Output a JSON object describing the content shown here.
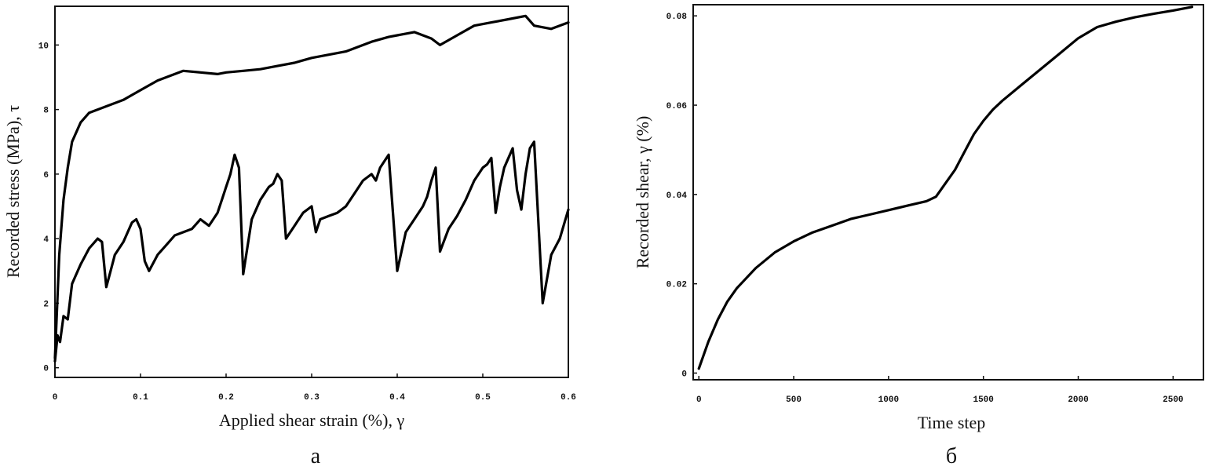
{
  "chart_data": [
    {
      "type": "line",
      "panel_label": "a",
      "xlabel": "Applied shear strain (%), γ",
      "ylabel": "Recorded stress (MPa), τ",
      "xlim": [
        0,
        0.6
      ],
      "ylim": [
        -0.3,
        11.2
      ],
      "x_ticks": [
        0,
        0.1,
        0.2,
        0.3,
        0.4,
        0.5,
        0.6
      ],
      "x_tick_labels": [
        "0",
        "0.1",
        "0.2",
        "0.3",
        "0.4",
        "0.5",
        "0.6"
      ],
      "y_ticks": [
        0,
        2,
        4,
        6,
        8,
        10
      ],
      "y_tick_labels": [
        "0",
        "2",
        "4",
        "6",
        "8",
        "10"
      ],
      "grid": false,
      "series": [
        {
          "x": [
            0,
            0.005,
            0.01,
            0.015,
            0.02,
            0.03,
            0.04,
            0.05,
            0.06,
            0.08,
            0.1,
            0.12,
            0.14,
            0.15,
            0.17,
            0.19,
            0.2,
            0.22,
            0.24,
            0.26,
            0.28,
            0.3,
            0.32,
            0.34,
            0.36,
            0.37,
            0.39,
            0.4,
            0.42,
            0.44,
            0.45,
            0.47,
            0.49,
            0.51,
            0.53,
            0.55,
            0.56,
            0.58,
            0.6
          ],
          "y": [
            0.3,
            3.5,
            5.2,
            6.2,
            7.0,
            7.6,
            7.9,
            8.0,
            8.1,
            8.3,
            8.6,
            8.9,
            9.1,
            9.2,
            9.15,
            9.1,
            9.15,
            9.2,
            9.25,
            9.35,
            9.45,
            9.6,
            9.7,
            9.8,
            10.0,
            10.1,
            10.25,
            10.3,
            10.4,
            10.2,
            10.0,
            10.3,
            10.6,
            10.7,
            10.8,
            10.9,
            10.6,
            10.5,
            10.7
          ]
        },
        {
          "x": [
            0,
            0.003,
            0.006,
            0.01,
            0.015,
            0.02,
            0.03,
            0.04,
            0.05,
            0.055,
            0.06,
            0.065,
            0.07,
            0.08,
            0.09,
            0.095,
            0.1,
            0.105,
            0.11,
            0.12,
            0.13,
            0.14,
            0.15,
            0.16,
            0.17,
            0.18,
            0.19,
            0.195,
            0.2,
            0.205,
            0.21,
            0.215,
            0.22,
            0.23,
            0.24,
            0.25,
            0.255,
            0.26,
            0.265,
            0.27,
            0.28,
            0.29,
            0.3,
            0.305,
            0.31,
            0.32,
            0.33,
            0.34,
            0.35,
            0.36,
            0.37,
            0.375,
            0.38,
            0.385,
            0.39,
            0.4,
            0.41,
            0.42,
            0.43,
            0.435,
            0.44,
            0.445,
            0.45,
            0.46,
            0.47,
            0.48,
            0.49,
            0.5,
            0.505,
            0.51,
            0.515,
            0.52,
            0.525,
            0.53,
            0.535,
            0.54,
            0.545,
            0.55,
            0.555,
            0.56,
            0.57,
            0.58,
            0.59,
            0.6
          ],
          "y": [
            0.2,
            1.0,
            0.8,
            1.6,
            1.5,
            2.6,
            3.2,
            3.7,
            4.0,
            3.9,
            2.5,
            3.0,
            3.5,
            3.9,
            4.5,
            4.6,
            4.3,
            3.3,
            3.0,
            3.5,
            3.8,
            4.1,
            4.2,
            4.3,
            4.6,
            4.4,
            4.8,
            5.2,
            5.6,
            6.0,
            6.6,
            6.2,
            2.9,
            4.6,
            5.2,
            5.6,
            5.7,
            6.0,
            5.8,
            4.0,
            4.4,
            4.8,
            5.0,
            4.2,
            4.6,
            4.7,
            4.8,
            5.0,
            5.4,
            5.8,
            6.0,
            5.8,
            6.2,
            6.4,
            6.6,
            3.0,
            4.2,
            4.6,
            5.0,
            5.3,
            5.8,
            6.2,
            3.6,
            4.3,
            4.7,
            5.2,
            5.8,
            6.2,
            6.3,
            6.5,
            4.8,
            5.6,
            6.2,
            6.5,
            6.8,
            5.5,
            4.9,
            6.0,
            6.8,
            7.0,
            2.0,
            3.5,
            4.0,
            4.9
          ]
        }
      ]
    },
    {
      "type": "line",
      "panel_label": "б",
      "xlabel": "Time step",
      "ylabel": "Recorded shear, γ (%)",
      "xlim": [
        -30,
        2660
      ],
      "ylim": [
        -0.0015,
        0.0825
      ],
      "x_ticks": [
        0,
        500,
        1000,
        1500,
        2000,
        2500
      ],
      "x_tick_labels": [
        "0",
        "500",
        "1000",
        "1500",
        "2000",
        "2500"
      ],
      "y_ticks": [
        0,
        0.02,
        0.04,
        0.06,
        0.08
      ],
      "y_tick_labels": [
        "0",
        "0.02",
        "0.04",
        "0.06",
        "0.08"
      ],
      "grid": false,
      "series": [
        {
          "x": [
            0,
            50,
            100,
            150,
            200,
            300,
            400,
            500,
            600,
            700,
            800,
            900,
            1000,
            1100,
            1200,
            1250,
            1300,
            1350,
            1400,
            1450,
            1500,
            1550,
            1600,
            1700,
            1800,
            1900,
            2000,
            2100,
            2200,
            2300,
            2400,
            2500,
            2600
          ],
          "y": [
            0.001,
            0.007,
            0.012,
            0.016,
            0.019,
            0.0235,
            0.027,
            0.0295,
            0.0315,
            0.033,
            0.0345,
            0.0355,
            0.0365,
            0.0375,
            0.0385,
            0.0395,
            0.0425,
            0.0455,
            0.0495,
            0.0535,
            0.0565,
            0.059,
            0.061,
            0.0645,
            0.068,
            0.0715,
            0.075,
            0.0775,
            0.0787,
            0.0797,
            0.0805,
            0.0812,
            0.082
          ]
        }
      ]
    }
  ]
}
